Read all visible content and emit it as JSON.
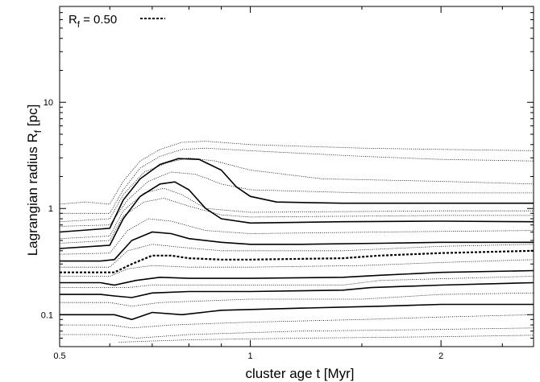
{
  "chart_data": {
    "type": "line",
    "xlabel": "cluster age t [Myr]",
    "ylabel": "Lagrangian radius R",
    "ylabel_subscript": "f",
    "ylabel_unit": "[pc]",
    "x_scale": "log",
    "y_scale": "log",
    "xlim": [
      0.5,
      2.8
    ],
    "ylim": [
      0.05,
      80
    ],
    "x_ticks": [
      {
        "value": 0.5,
        "label": "0.5"
      },
      {
        "value": 1,
        "label": "1"
      },
      {
        "value": 2,
        "label": "2"
      }
    ],
    "y_ticks": [
      {
        "value": 0.1,
        "label": "0.1"
      },
      {
        "value": 1,
        "label": "1"
      },
      {
        "value": 10,
        "label": "10"
      }
    ],
    "legend": {
      "placement": "top-left",
      "label_main": "R",
      "label_sub": "f",
      "label_rest": " = 0.50",
      "line_style": "dashed"
    },
    "grid": false,
    "series": [
      {
        "style": "solid",
        "values": [
          [
            0.5,
            0.1
          ],
          [
            0.58,
            0.1
          ],
          [
            0.61,
            0.1
          ],
          [
            0.65,
            0.09
          ],
          [
            0.7,
            0.105
          ],
          [
            0.78,
            0.1
          ],
          [
            0.9,
            0.11
          ],
          [
            1.2,
            0.115
          ],
          [
            1.6,
            0.12
          ],
          [
            2.0,
            0.125
          ],
          [
            2.8,
            0.125
          ]
        ]
      },
      {
        "style": "solid",
        "values": [
          [
            0.5,
            0.155
          ],
          [
            0.58,
            0.155
          ],
          [
            0.61,
            0.15
          ],
          [
            0.65,
            0.145
          ],
          [
            0.7,
            0.16
          ],
          [
            0.8,
            0.165
          ],
          [
            1.0,
            0.165
          ],
          [
            1.4,
            0.17
          ],
          [
            1.55,
            0.18
          ],
          [
            2.0,
            0.19
          ],
          [
            2.8,
            0.2
          ]
        ]
      },
      {
        "style": "solid",
        "values": [
          [
            0.5,
            0.2
          ],
          [
            0.58,
            0.2
          ],
          [
            0.61,
            0.19
          ],
          [
            0.66,
            0.21
          ],
          [
            0.72,
            0.225
          ],
          [
            0.8,
            0.22
          ],
          [
            1.0,
            0.22
          ],
          [
            1.4,
            0.225
          ],
          [
            1.6,
            0.235
          ],
          [
            2.0,
            0.25
          ],
          [
            2.8,
            0.26
          ]
        ]
      },
      {
        "style": "dashed",
        "values": [
          [
            0.5,
            0.25
          ],
          [
            0.58,
            0.25
          ],
          [
            0.61,
            0.25
          ],
          [
            0.65,
            0.3
          ],
          [
            0.7,
            0.36
          ],
          [
            0.75,
            0.36
          ],
          [
            0.8,
            0.34
          ],
          [
            0.9,
            0.33
          ],
          [
            1.0,
            0.33
          ],
          [
            1.4,
            0.34
          ],
          [
            1.6,
            0.36
          ],
          [
            2.0,
            0.38
          ],
          [
            2.8,
            0.4
          ]
        ]
      },
      {
        "style": "solid",
        "values": [
          [
            0.5,
            0.32
          ],
          [
            0.58,
            0.32
          ],
          [
            0.61,
            0.33
          ],
          [
            0.65,
            0.5
          ],
          [
            0.7,
            0.6
          ],
          [
            0.75,
            0.58
          ],
          [
            0.8,
            0.52
          ],
          [
            0.9,
            0.48
          ],
          [
            1.0,
            0.46
          ],
          [
            1.2,
            0.46
          ],
          [
            1.6,
            0.47
          ],
          [
            2.0,
            0.48
          ],
          [
            2.8,
            0.48
          ]
        ]
      },
      {
        "style": "solid",
        "values": [
          [
            0.5,
            0.42
          ],
          [
            0.6,
            0.45
          ],
          [
            0.63,
            0.8
          ],
          [
            0.67,
            1.3
          ],
          [
            0.72,
            1.7
          ],
          [
            0.76,
            1.78
          ],
          [
            0.8,
            1.5
          ],
          [
            0.85,
            1.0
          ],
          [
            0.9,
            0.8
          ],
          [
            1.0,
            0.73
          ],
          [
            1.4,
            0.75
          ],
          [
            2.0,
            0.76
          ],
          [
            2.8,
            0.75
          ]
        ]
      },
      {
        "style": "solid",
        "values": [
          [
            0.5,
            0.6
          ],
          [
            0.6,
            0.65
          ],
          [
            0.63,
            1.2
          ],
          [
            0.67,
            1.9
          ],
          [
            0.72,
            2.6
          ],
          [
            0.77,
            2.95
          ],
          [
            0.83,
            2.9
          ],
          [
            0.9,
            2.3
          ],
          [
            0.95,
            1.6
          ],
          [
            1.0,
            1.3
          ],
          [
            1.1,
            1.15
          ],
          [
            1.4,
            1.12
          ],
          [
            2.0,
            1.12
          ],
          [
            2.8,
            1.12
          ]
        ]
      },
      {
        "style": "dotted",
        "values": [
          [
            0.5,
            1.1
          ],
          [
            0.55,
            1.15
          ],
          [
            0.6,
            1.1
          ],
          [
            0.63,
            1.8
          ],
          [
            0.67,
            2.8
          ],
          [
            0.72,
            3.6
          ],
          [
            0.78,
            4.2
          ],
          [
            0.85,
            4.3
          ],
          [
            1.0,
            4.0
          ],
          [
            1.5,
            3.7
          ],
          [
            2.0,
            3.6
          ],
          [
            2.8,
            3.5
          ]
        ]
      },
      {
        "style": "dotted",
        "values": [
          [
            0.5,
            0.9
          ],
          [
            0.6,
            0.9
          ],
          [
            0.63,
            1.5
          ],
          [
            0.67,
            2.4
          ],
          [
            0.72,
            3.1
          ],
          [
            0.78,
            3.6
          ],
          [
            0.85,
            3.7
          ],
          [
            1.0,
            3.5
          ],
          [
            1.5,
            3.1
          ],
          [
            2.0,
            2.9
          ],
          [
            2.8,
            2.8
          ]
        ]
      },
      {
        "style": "dotted",
        "values": [
          [
            0.5,
            0.75
          ],
          [
            0.6,
            0.8
          ],
          [
            0.63,
            1.35
          ],
          [
            0.68,
            2.2
          ],
          [
            0.74,
            2.7
          ],
          [
            0.8,
            3.0
          ],
          [
            0.88,
            2.8
          ],
          [
            1.0,
            2.3
          ],
          [
            1.3,
            1.9
          ],
          [
            2.0,
            1.8
          ],
          [
            2.8,
            1.7
          ]
        ]
      },
      {
        "style": "dotted",
        "values": [
          [
            0.5,
            0.68
          ],
          [
            0.6,
            0.7
          ],
          [
            0.64,
            1.2
          ],
          [
            0.69,
            1.8
          ],
          [
            0.75,
            2.2
          ],
          [
            0.82,
            2.1
          ],
          [
            0.9,
            1.7
          ],
          [
            1.0,
            1.5
          ],
          [
            1.5,
            1.4
          ],
          [
            2.8,
            1.4
          ]
        ]
      },
      {
        "style": "dotted",
        "values": [
          [
            0.5,
            0.52
          ],
          [
            0.6,
            0.55
          ],
          [
            0.63,
            0.95
          ],
          [
            0.68,
            1.4
          ],
          [
            0.73,
            1.55
          ],
          [
            0.78,
            1.35
          ],
          [
            0.85,
            1.0
          ],
          [
            1.0,
            0.92
          ],
          [
            2.0,
            0.95
          ],
          [
            2.8,
            0.95
          ]
        ]
      },
      {
        "style": "dotted",
        "values": [
          [
            0.5,
            0.47
          ],
          [
            0.6,
            0.5
          ],
          [
            0.63,
            0.85
          ],
          [
            0.68,
            1.15
          ],
          [
            0.73,
            1.25
          ],
          [
            0.8,
            1.05
          ],
          [
            0.9,
            0.87
          ],
          [
            1.0,
            0.83
          ],
          [
            2.0,
            0.86
          ],
          [
            2.8,
            0.86
          ]
        ]
      },
      {
        "style": "dotted",
        "values": [
          [
            0.5,
            0.37
          ],
          [
            0.6,
            0.38
          ],
          [
            0.64,
            0.62
          ],
          [
            0.69,
            0.8
          ],
          [
            0.75,
            0.76
          ],
          [
            0.85,
            0.62
          ],
          [
            1.0,
            0.58
          ],
          [
            1.6,
            0.6
          ],
          [
            2.8,
            0.62
          ]
        ]
      },
      {
        "style": "dotted",
        "values": [
          [
            0.5,
            0.28
          ],
          [
            0.6,
            0.28
          ],
          [
            0.64,
            0.4
          ],
          [
            0.7,
            0.46
          ],
          [
            0.78,
            0.43
          ],
          [
            0.9,
            0.4
          ],
          [
            1.4,
            0.4
          ],
          [
            2.0,
            0.44
          ],
          [
            2.8,
            0.46
          ]
        ]
      },
      {
        "style": "dotted",
        "values": [
          [
            0.5,
            0.23
          ],
          [
            0.6,
            0.23
          ],
          [
            0.64,
            0.27
          ],
          [
            0.7,
            0.29
          ],
          [
            0.8,
            0.28
          ],
          [
            1.0,
            0.28
          ],
          [
            1.5,
            0.29
          ],
          [
            2.0,
            0.31
          ],
          [
            2.8,
            0.33
          ]
        ]
      },
      {
        "style": "dotted",
        "values": [
          [
            0.5,
            0.18
          ],
          [
            0.6,
            0.18
          ],
          [
            0.64,
            0.18
          ],
          [
            0.7,
            0.19
          ],
          [
            0.9,
            0.19
          ],
          [
            1.4,
            0.19
          ],
          [
            1.6,
            0.21
          ],
          [
            2.8,
            0.23
          ]
        ]
      },
      {
        "style": "dotted",
        "values": [
          [
            0.5,
            0.13
          ],
          [
            0.6,
            0.13
          ],
          [
            0.65,
            0.12
          ],
          [
            0.72,
            0.13
          ],
          [
            1.0,
            0.14
          ],
          [
            1.5,
            0.14
          ],
          [
            2.0,
            0.155
          ],
          [
            2.8,
            0.16
          ]
        ]
      },
      {
        "style": "dotted",
        "values": [
          [
            0.5,
            0.08
          ],
          [
            0.6,
            0.08
          ],
          [
            0.65,
            0.075
          ],
          [
            0.75,
            0.08
          ],
          [
            1.0,
            0.085
          ],
          [
            1.5,
            0.09
          ],
          [
            2.0,
            0.095
          ],
          [
            2.8,
            0.1
          ]
        ]
      },
      {
        "style": "dotted",
        "values": [
          [
            0.5,
            0.065
          ],
          [
            0.6,
            0.065
          ],
          [
            0.66,
            0.06
          ],
          [
            0.8,
            0.065
          ],
          [
            1.2,
            0.07
          ],
          [
            1.8,
            0.072
          ],
          [
            2.8,
            0.075
          ]
        ]
      },
      {
        "style": "dotted",
        "values": [
          [
            0.62,
            0.055
          ],
          [
            0.8,
            0.058
          ],
          [
            1.2,
            0.06
          ],
          [
            2.0,
            0.062
          ],
          [
            2.8,
            0.064
          ]
        ]
      }
    ]
  }
}
